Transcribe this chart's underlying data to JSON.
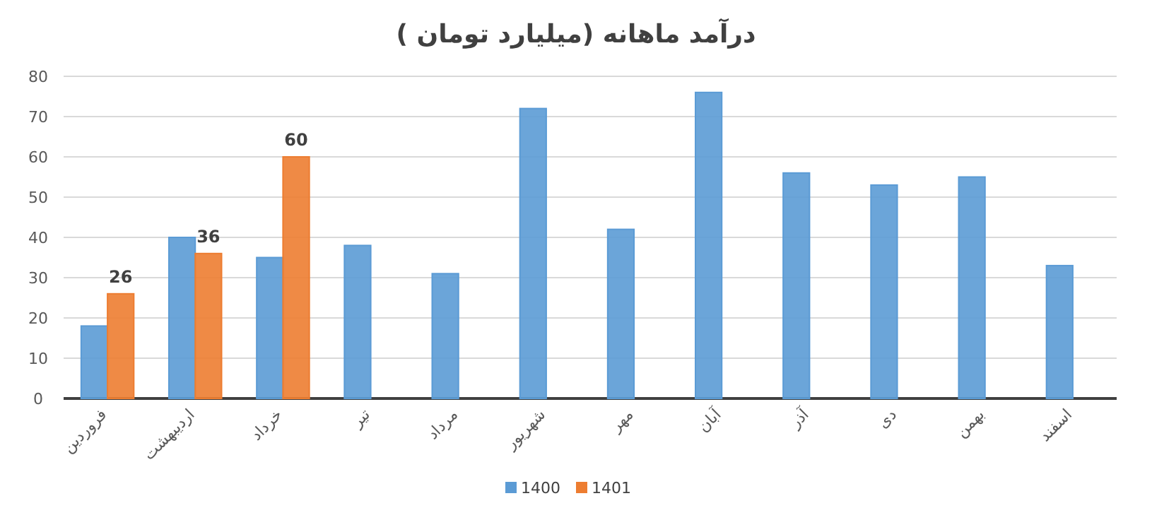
{
  "chart_data": {
    "type": "bar",
    "title": "درآمد ماهانه (میلیارد تومان )",
    "categories": [
      "فروردین",
      "اردیبهشت",
      "خرداد",
      "تیر",
      "مرداد",
      "شهریور",
      "مهر",
      "آبان",
      "آذر",
      "دی",
      "بهمن",
      "اسفند"
    ],
    "series": [
      {
        "name": "1400",
        "color": "#5b9bd5",
        "values": [
          18,
          40,
          35,
          38,
          31,
          72,
          42,
          76,
          56,
          53,
          55,
          33
        ]
      },
      {
        "name": "1401",
        "color": "#ed7d31",
        "values": [
          26,
          36,
          60,
          null,
          null,
          null,
          null,
          null,
          null,
          null,
          null,
          null
        ],
        "value_labels": [
          "26",
          "36",
          "60",
          null,
          null,
          null,
          null,
          null,
          null,
          null,
          null,
          null
        ]
      }
    ],
    "ylim": [
      0,
      80
    ],
    "yticks": [
      0,
      10,
      20,
      30,
      40,
      50,
      60,
      70,
      80
    ],
    "grid": "y",
    "legend": "bottom"
  }
}
